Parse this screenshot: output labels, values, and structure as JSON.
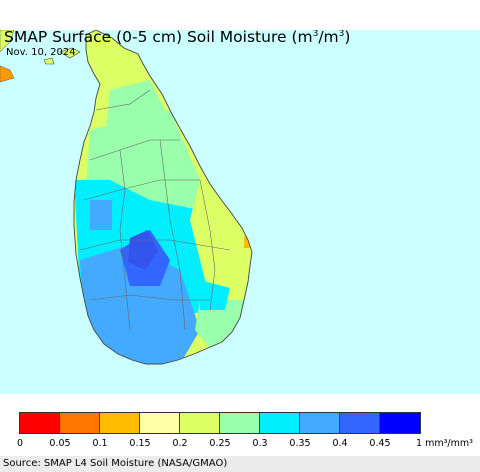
{
  "header": {
    "title_main": "SMAP Surface (0-5 cm) Soil Moisture (m",
    "title_sup1": "3",
    "title_mid": "/m",
    "title_sup2": "3",
    "title_end": ")",
    "date": "Nov. 10, 2024"
  },
  "map": {
    "region": "Sri Lanka",
    "sea_color": "#ccffff",
    "outline_color": "#555555",
    "moisture_zones": [
      {
        "name": "north-peninsula",
        "class": "0.2-0.25"
      },
      {
        "name": "north-central",
        "class": "0.2-0.25"
      },
      {
        "name": "central-dry-zone",
        "class": "0.25-0.3"
      },
      {
        "name": "west-belt",
        "class": "0.3-0.35"
      },
      {
        "name": "southwest",
        "class": "0.35-0.4"
      },
      {
        "name": "central-highlands",
        "class": "0.4-0.45"
      },
      {
        "name": "east-coast",
        "class": "0.2-0.25"
      },
      {
        "name": "southeast",
        "class": "0.25-0.3"
      }
    ]
  },
  "legend": {
    "classes": [
      {
        "label": "0",
        "color": "#ff0000"
      },
      {
        "label": "0.05",
        "color": "#ff7700"
      },
      {
        "label": "0.1",
        "color": "#ffbb00"
      },
      {
        "label": "0.15",
        "color": "#ffffaa"
      },
      {
        "label": "0.2",
        "color": "#ddff66"
      },
      {
        "label": "0.25",
        "color": "#99ffaa"
      },
      {
        "label": "0.3",
        "color": "#00eeff"
      },
      {
        "label": "0.35",
        "color": "#44aaff"
      },
      {
        "label": "0.4",
        "color": "#3366ff"
      },
      {
        "label": "0.45",
        "color": "#0000ff"
      }
    ],
    "end_label": "1 mm³/mm³"
  },
  "footer": {
    "source": "Source: SMAP L4 Soil Moisture (NASA/GMAO)"
  }
}
